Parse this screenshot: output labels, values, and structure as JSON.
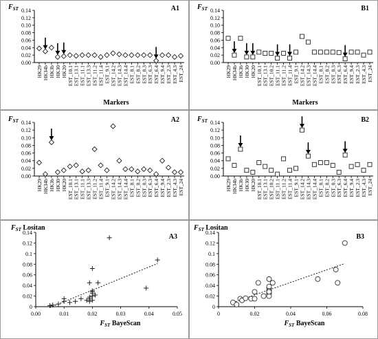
{
  "figure": {
    "markers_top": [
      "HK29",
      "HK34b",
      "HK3b",
      "HK30",
      "HK20",
      "EST_10.1",
      "EST_13.1",
      "EST_11.1",
      "EST_13.3",
      "EST_11.2",
      "EST_11.4",
      "EST_9.1",
      "EST_14.2",
      "EST_14.3",
      "EST_14.4",
      "EST_8.1",
      "EST_8.2",
      "EST_8.3",
      "EST_6.3",
      "EST_6.4",
      "EST_9.4",
      "EST_2.3",
      "EST_4.3",
      "EST_24"
    ],
    "markers_bottom": [
      "HK29",
      "HK34b",
      "HK3b",
      "HK30",
      "HK20",
      "EST_10.1",
      "EST_13.1",
      "EST_10.2",
      "EST_11.1",
      "EST_11.2",
      "EST_11.4",
      "EST_9.1",
      "EST_14.2",
      "EST_14.3",
      "EST_14.4",
      "EST_8.1",
      "EST_8.2",
      "EST_8.3",
      "EST_6.3",
      "EST_6.4",
      "EST_9.4",
      "EST_2.3",
      "EST_4.3",
      "EST_24"
    ]
  },
  "chart_data": [
    {
      "panel": "A1",
      "type": "scatter",
      "marker": "diamond",
      "ylabel": "FST",
      "xlabel": "Markers",
      "ylim": [
        0,
        0.14
      ],
      "yticks": [
        "0.00",
        "0.02",
        "0.04",
        "0.06",
        "0.08",
        "0.10",
        "0.12",
        "0.14"
      ],
      "values": [
        0.038,
        0.03,
        0.04,
        0.015,
        0.017,
        0.02,
        0.018,
        0.02,
        0.02,
        0.02,
        0.015,
        0.02,
        0.025,
        0.022,
        0.02,
        0.02,
        0.02,
        0.02,
        0.02,
        0.005,
        0.02,
        0.02,
        0.015,
        0.018
      ],
      "arrows": [
        1,
        3,
        4,
        19
      ]
    },
    {
      "panel": "B1",
      "type": "scatter",
      "marker": "square",
      "ylabel": "FST",
      "xlabel": "Markers",
      "ylim": [
        0,
        0.14
      ],
      "yticks": [
        "0.00",
        "0.02",
        "0.04",
        "0.06",
        "0.08",
        "0.10",
        "0.12",
        "0.14"
      ],
      "values": [
        0.065,
        0.02,
        0.065,
        0.015,
        0.015,
        0.028,
        0.025,
        0.025,
        0.012,
        0.025,
        0.012,
        0.028,
        0.07,
        0.055,
        0.028,
        0.028,
        0.028,
        0.028,
        0.027,
        0.01,
        0.028,
        0.028,
        0.02,
        0.028
      ],
      "arrows": [
        1,
        3,
        4,
        8,
        10,
        19
      ]
    },
    {
      "panel": "A2",
      "type": "scatter",
      "marker": "diamond",
      "ylabel": "FST",
      "xlabel": "",
      "ylim": [
        0,
        0.14
      ],
      "yticks": [
        "0.00",
        "0.02",
        "0.04",
        "0.06",
        "0.08",
        "0.10",
        "0.12",
        "0.14"
      ],
      "values": [
        0.035,
        0.005,
        0.088,
        0.01,
        0.015,
        0.025,
        0.028,
        0.012,
        0.015,
        0.07,
        0.028,
        0.015,
        0.13,
        0.04,
        0.018,
        0.018,
        0.012,
        0.018,
        0.015,
        0.005,
        0.04,
        0.022,
        0.01,
        0.01
      ],
      "arrows": [
        2
      ]
    },
    {
      "panel": "B2",
      "type": "scatter",
      "marker": "square",
      "ylabel": "FST",
      "xlabel": "",
      "ylim": [
        0,
        0.14
      ],
      "yticks": [
        "0.00",
        "0.02",
        "0.04",
        "0.06",
        "0.08",
        "0.10",
        "0.12",
        "0.14"
      ],
      "values": [
        0.045,
        0.028,
        0.07,
        0.015,
        0.01,
        0.035,
        0.025,
        0.015,
        0.005,
        0.045,
        0.015,
        0.02,
        0.12,
        0.052,
        0.03,
        0.035,
        0.035,
        0.028,
        0.01,
        0.055,
        0.025,
        0.03,
        0.015,
        0.03
      ],
      "arrows": [
        2,
        12,
        13,
        19
      ]
    },
    {
      "panel": "A3",
      "type": "scatter",
      "marker": "plus",
      "trendline": true,
      "ylabel": "FST Lositan",
      "xlabel": "FST BayeScan",
      "xlim": [
        0,
        0.05
      ],
      "ylim": [
        0,
        0.14
      ],
      "xticks": [
        "0.00",
        "0.01",
        "0.02",
        "0.03",
        "0.04",
        "0.05"
      ],
      "yticks": [
        "0",
        "0.02",
        "0.04",
        "0.06",
        "0.08",
        "0.1",
        "0.12",
        "0.14"
      ],
      "x": [
        0.005,
        0.006,
        0.008,
        0.01,
        0.01,
        0.012,
        0.014,
        0.016,
        0.018,
        0.019,
        0.019,
        0.02,
        0.02,
        0.02,
        0.02,
        0.019,
        0.02,
        0.021,
        0.022,
        0.026,
        0.039,
        0.043,
        0.02,
        0.019
      ],
      "y": [
        0.002,
        0.003,
        0.005,
        0.015,
        0.01,
        0.008,
        0.01,
        0.015,
        0.012,
        0.01,
        0.015,
        0.02,
        0.025,
        0.028,
        0.03,
        0.045,
        0.072,
        0.022,
        0.045,
        0.13,
        0.035,
        0.088,
        0.012,
        0.018
      ]
    },
    {
      "panel": "B3",
      "type": "scatter",
      "marker": "circle",
      "trendline": true,
      "ylabel": "FST Lositan",
      "xlabel": "FST BayeScan",
      "xlim": [
        0,
        0.08
      ],
      "ylim": [
        0,
        0.14
      ],
      "xticks": [
        "0",
        "0.02",
        "0.04",
        "0.06",
        "0.08"
      ],
      "yticks": [
        "0",
        "0.02",
        "0.04",
        "0.06",
        "0.08",
        "0.1",
        "0.12",
        "0.14"
      ],
      "x": [
        0.008,
        0.01,
        0.012,
        0.013,
        0.015,
        0.018,
        0.02,
        0.022,
        0.025,
        0.028,
        0.028,
        0.028,
        0.028,
        0.028,
        0.028,
        0.028,
        0.028,
        0.03,
        0.055,
        0.065,
        0.066,
        0.07,
        0.028,
        0.02
      ],
      "y": [
        0.008,
        0.004,
        0.015,
        0.012,
        0.016,
        0.015,
        0.028,
        0.045,
        0.02,
        0.025,
        0.03,
        0.035,
        0.038,
        0.052,
        0.025,
        0.02,
        0.03,
        0.045,
        0.052,
        0.07,
        0.045,
        0.12,
        0.028,
        0.015
      ]
    }
  ]
}
